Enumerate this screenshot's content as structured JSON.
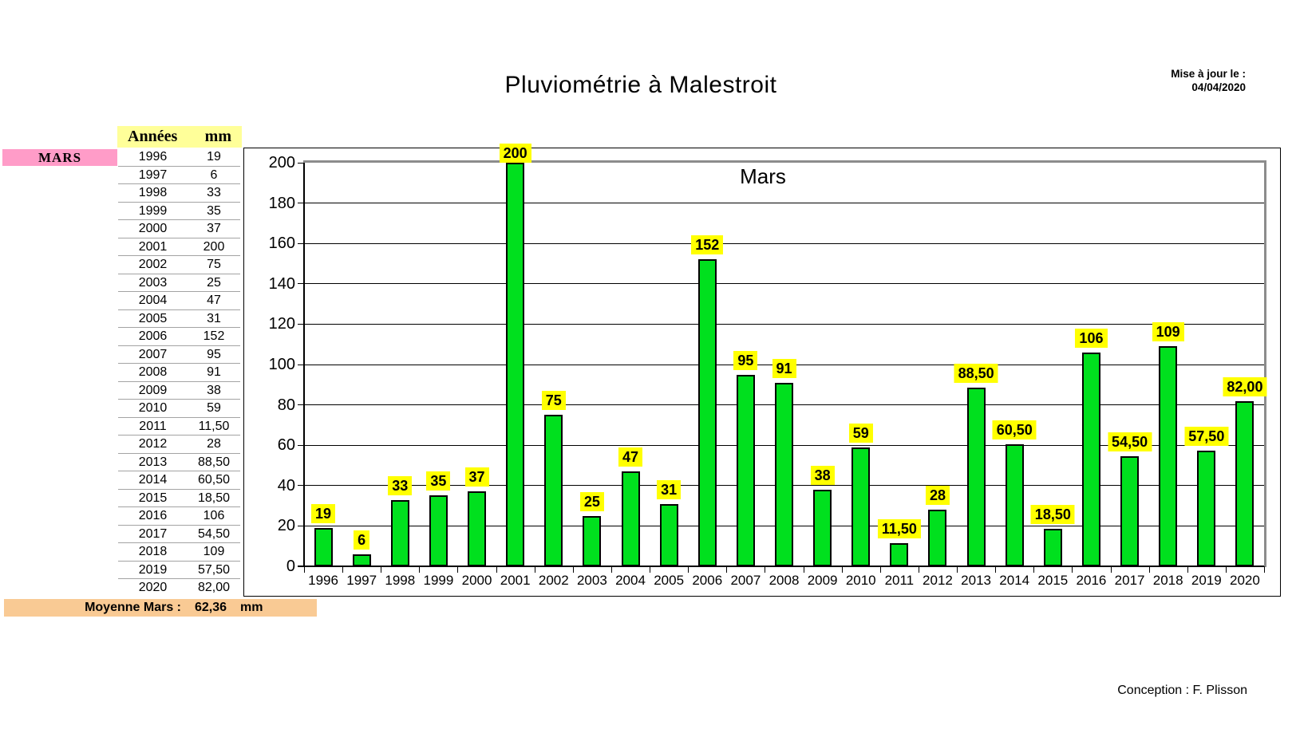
{
  "page": {
    "title": "Pluviométrie à Malestroit",
    "updated_label": "Mise à jour le :",
    "updated_date": "04/04/2020",
    "credit": "Conception : F. Plisson"
  },
  "table": {
    "col_year": "Années",
    "col_mm": "mm",
    "row_label": "MARS",
    "rows": [
      {
        "year": "1996",
        "mm": "19"
      },
      {
        "year": "1997",
        "mm": "6"
      },
      {
        "year": "1998",
        "mm": "33"
      },
      {
        "year": "1999",
        "mm": "35"
      },
      {
        "year": "2000",
        "mm": "37"
      },
      {
        "year": "2001",
        "mm": "200"
      },
      {
        "year": "2002",
        "mm": "75"
      },
      {
        "year": "2003",
        "mm": "25"
      },
      {
        "year": "2004",
        "mm": "47"
      },
      {
        "year": "2005",
        "mm": "31"
      },
      {
        "year": "2006",
        "mm": "152"
      },
      {
        "year": "2007",
        "mm": "95"
      },
      {
        "year": "2008",
        "mm": "91"
      },
      {
        "year": "2009",
        "mm": "38"
      },
      {
        "year": "2010",
        "mm": "59"
      },
      {
        "year": "2011",
        "mm": "11,50"
      },
      {
        "year": "2012",
        "mm": "28"
      },
      {
        "year": "2013",
        "mm": "88,50"
      },
      {
        "year": "2014",
        "mm": "60,50"
      },
      {
        "year": "2015",
        "mm": "18,50"
      },
      {
        "year": "2016",
        "mm": "106"
      },
      {
        "year": "2017",
        "mm": "54,50"
      },
      {
        "year": "2018",
        "mm": "109"
      },
      {
        "year": "2019",
        "mm": "57,50"
      },
      {
        "year": "2020",
        "mm": "82,00"
      }
    ],
    "footer": {
      "label": "Moyenne Mars :",
      "value": "62,36",
      "unit": "mm"
    }
  },
  "chart_data": {
    "type": "bar",
    "title": "Mars",
    "categories": [
      "1996",
      "1997",
      "1998",
      "1999",
      "2000",
      "2001",
      "2002",
      "2003",
      "2004",
      "2005",
      "2006",
      "2007",
      "2008",
      "2009",
      "2010",
      "2011",
      "2012",
      "2013",
      "2014",
      "2015",
      "2016",
      "2017",
      "2018",
      "2019",
      "2020"
    ],
    "values": [
      19,
      6,
      33,
      35,
      37,
      200,
      75,
      25,
      47,
      31,
      152,
      95,
      91,
      38,
      59,
      11.5,
      28,
      88.5,
      60.5,
      18.5,
      106,
      54.5,
      109,
      57.5,
      82
    ],
    "labels": [
      "19",
      "6",
      "33",
      "35",
      "37",
      "200",
      "75",
      "25",
      "47",
      "31",
      "152",
      "95",
      "91",
      "38",
      "59",
      "11,50",
      "28",
      "88,50",
      "60,50",
      "18,50",
      "106",
      "54,50",
      "109",
      "57,50",
      "82,00"
    ],
    "xlabel": "",
    "ylabel": "",
    "ylim": [
      0,
      200
    ],
    "ytick_step": 20,
    "grid": true,
    "legend": "none",
    "bar_color": "#00E01E",
    "bar_border_color": "#000000",
    "label_bg": "#FFFF00",
    "gridline_color": "#000000",
    "plot_border_color": "#8C8C8C"
  }
}
